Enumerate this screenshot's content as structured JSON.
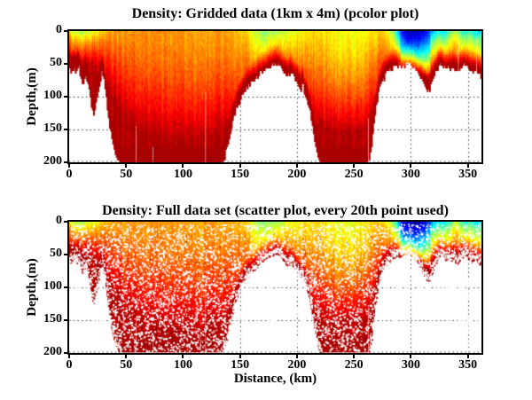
{
  "figure": {
    "background": "#ffffff"
  },
  "chart_data": [
    {
      "type": "heatmap",
      "title": "Density: Gridded data (1km x 4m) (pcolor plot)",
      "xlabel": "",
      "ylabel": "Depth,(m)",
      "xlim": [
        0,
        362
      ],
      "ylim": [
        200,
        0
      ],
      "x_ticks": [
        0,
        50,
        100,
        150,
        200,
        250,
        300,
        350
      ],
      "y_ticks": [
        0,
        50,
        100,
        150,
        200
      ],
      "grid": "dotted",
      "grid_cell": {
        "dx_km": 1,
        "dz_m": 4
      },
      "colormap": "jet",
      "colormap_stops": [
        "#00008f",
        "#0000ff",
        "#00ffff",
        "#ffff00",
        "#ff0000",
        "#800000"
      ],
      "field_model": {
        "note": "Density section: normalized value 0 (least dense, dark blue) to 1 (most dense, dark red). Density increases with depth; low-density surface water (blue/cyan) near km 288-362; white = no data (below seafloor).",
        "bathymetry_km_m": [
          [
            0,
            57
          ],
          [
            2,
            62
          ],
          [
            4,
            55
          ],
          [
            6,
            66
          ],
          [
            8,
            52
          ],
          [
            10,
            70
          ],
          [
            12,
            82
          ],
          [
            14,
            68
          ],
          [
            16,
            75
          ],
          [
            18,
            95
          ],
          [
            20,
            118
          ],
          [
            21,
            130
          ],
          [
            23,
            115
          ],
          [
            25,
            98
          ],
          [
            27,
            78
          ],
          [
            29,
            60
          ],
          [
            31,
            82
          ],
          [
            33,
            110
          ],
          [
            35,
            140
          ],
          [
            37,
            160
          ],
          [
            39,
            178
          ],
          [
            41,
            190
          ],
          [
            43,
            197
          ],
          [
            46,
            200
          ],
          [
            134,
            200
          ],
          [
            137,
            190
          ],
          [
            139,
            172
          ],
          [
            141,
            158
          ],
          [
            144,
            135
          ],
          [
            147,
            118
          ],
          [
            150,
            105
          ],
          [
            153,
            95
          ],
          [
            156,
            86
          ],
          [
            159,
            79
          ],
          [
            162,
            74
          ],
          [
            165,
            68
          ],
          [
            168,
            62
          ],
          [
            171,
            58
          ],
          [
            174,
            55
          ],
          [
            177,
            52
          ],
          [
            180,
            50
          ],
          [
            183,
            49
          ],
          [
            186,
            55
          ],
          [
            189,
            62
          ],
          [
            192,
            68
          ],
          [
            195,
            62
          ],
          [
            198,
            72
          ],
          [
            200,
            77
          ],
          [
            203,
            85
          ],
          [
            204,
            95
          ],
          [
            205,
            63
          ],
          [
            206,
            95
          ],
          [
            208,
            100
          ],
          [
            211,
            120
          ],
          [
            213,
            140
          ],
          [
            215,
            160
          ],
          [
            217,
            180
          ],
          [
            219,
            195
          ],
          [
            221,
            200
          ],
          [
            263,
            200
          ],
          [
            265,
            185
          ],
          [
            267,
            150
          ],
          [
            269,
            120
          ],
          [
            271,
            100
          ],
          [
            273,
            86
          ],
          [
            275,
            76
          ],
          [
            277,
            69
          ],
          [
            279,
            64
          ],
          [
            282,
            58
          ],
          [
            285,
            54
          ],
          [
            288,
            52
          ],
          [
            291,
            54
          ],
          [
            294,
            52
          ],
          [
            297,
            48
          ],
          [
            300,
            51
          ],
          [
            303,
            56
          ],
          [
            306,
            63
          ],
          [
            309,
            72
          ],
          [
            312,
            84
          ],
          [
            315,
            93
          ],
          [
            317,
            86
          ],
          [
            319,
            76
          ],
          [
            321,
            66
          ],
          [
            323,
            58
          ],
          [
            325,
            52
          ],
          [
            327,
            47
          ],
          [
            329,
            54
          ],
          [
            331,
            60
          ],
          [
            333,
            56
          ],
          [
            335,
            60
          ],
          [
            337,
            57
          ],
          [
            339,
            61
          ],
          [
            341,
            64
          ],
          [
            343,
            58
          ],
          [
            345,
            54
          ],
          [
            347,
            50
          ],
          [
            349,
            53
          ],
          [
            351,
            58
          ],
          [
            353,
            62
          ],
          [
            355,
            60
          ],
          [
            357,
            57
          ],
          [
            359,
            63
          ],
          [
            361,
            66
          ],
          [
            362,
            68
          ]
        ],
        "surface_value_km_v": [
          [
            0,
            0.66
          ],
          [
            2,
            0.58
          ],
          [
            5,
            0.52
          ],
          [
            9,
            0.5
          ],
          [
            13,
            0.52
          ],
          [
            17,
            0.54
          ],
          [
            21,
            0.58
          ],
          [
            25,
            0.61
          ],
          [
            29,
            0.65
          ],
          [
            33,
            0.68
          ],
          [
            38,
            0.7
          ],
          [
            45,
            0.72
          ],
          [
            70,
            0.73
          ],
          [
            100,
            0.72
          ],
          [
            130,
            0.72
          ],
          [
            145,
            0.71
          ],
          [
            152,
            0.69
          ],
          [
            158,
            0.64
          ],
          [
            163,
            0.57
          ],
          [
            170,
            0.52
          ],
          [
            180,
            0.52
          ],
          [
            188,
            0.56
          ],
          [
            196,
            0.6
          ],
          [
            205,
            0.63
          ],
          [
            214,
            0.66
          ],
          [
            222,
            0.66
          ],
          [
            232,
            0.62
          ],
          [
            244,
            0.61
          ],
          [
            256,
            0.62
          ],
          [
            264,
            0.65
          ],
          [
            271,
            0.67
          ],
          [
            277,
            0.64
          ],
          [
            282,
            0.57
          ],
          [
            286,
            0.44
          ],
          [
            290,
            0.22
          ],
          [
            294,
            0.08
          ],
          [
            300,
            0.04
          ],
          [
            306,
            0.05
          ],
          [
            311,
            0.09
          ],
          [
            316,
            0.17
          ],
          [
            320,
            0.28
          ],
          [
            324,
            0.35
          ],
          [
            328,
            0.32
          ],
          [
            332,
            0.38
          ],
          [
            336,
            0.47
          ],
          [
            340,
            0.55
          ],
          [
            344,
            0.43
          ],
          [
            348,
            0.35
          ],
          [
            352,
            0.41
          ],
          [
            356,
            0.35
          ],
          [
            360,
            0.33
          ],
          [
            362,
            0.35
          ]
        ],
        "red_transition_depth_km_m": [
          [
            0,
            32
          ],
          [
            10,
            32
          ],
          [
            20,
            34
          ],
          [
            25,
            38
          ],
          [
            30,
            50
          ],
          [
            40,
            70
          ],
          [
            50,
            85
          ],
          [
            60,
            95
          ],
          [
            90,
            105
          ],
          [
            130,
            100
          ],
          [
            145,
            92
          ],
          [
            160,
            78
          ],
          [
            172,
            66
          ],
          [
            182,
            58
          ],
          [
            192,
            64
          ],
          [
            200,
            72
          ],
          [
            208,
            80
          ],
          [
            218,
            90
          ],
          [
            235,
            98
          ],
          [
            258,
            95
          ],
          [
            266,
            85
          ],
          [
            274,
            70
          ],
          [
            282,
            58
          ],
          [
            290,
            50
          ],
          [
            320,
            48
          ],
          [
            345,
            50
          ],
          [
            362,
            50
          ]
        ],
        "missing_data_columns": [
          {
            "km": 58,
            "from_m": 145
          },
          {
            "km": 73,
            "from_m": 176
          },
          {
            "km": 119,
            "from_m": 90
          },
          {
            "km": 262,
            "from_m": 130
          },
          {
            "km": 341,
            "from_m": 2
          },
          {
            "km": 357,
            "from_m": 8
          }
        ]
      }
    },
    {
      "type": "scatter",
      "title": "Density: Full data set (scatter plot, every 20th point used)",
      "xlabel": "Distance, (km)",
      "ylabel": "Depth,(m)",
      "xlim": [
        0,
        362
      ],
      "ylim": [
        200,
        0
      ],
      "x_ticks": [
        0,
        50,
        100,
        150,
        200,
        250,
        300,
        350
      ],
      "y_ticks": [
        0,
        50,
        100,
        150,
        200
      ],
      "grid": "dotted",
      "colormap": "jet",
      "marker": "small dots with white speckle gaps between samples",
      "field_model": "same density section as chart 0 (every 20th raw data point)"
    }
  ]
}
